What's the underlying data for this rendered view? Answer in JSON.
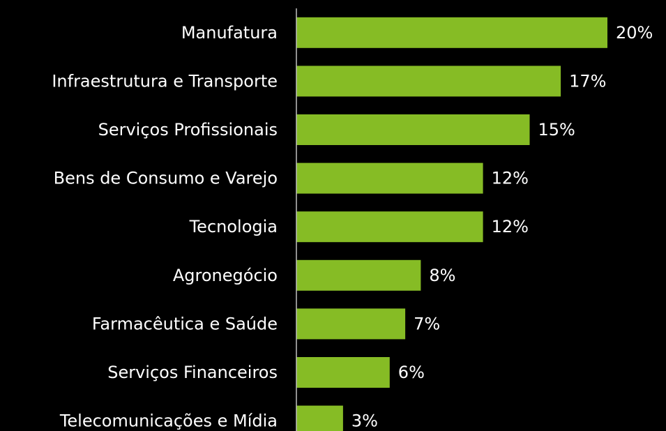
{
  "chart_data": {
    "type": "hbar",
    "categories": [
      "Manufatura",
      "Infraestrutura e Transporte",
      "Serviços Profissionais",
      "Bens de Consumo e Varejo",
      "Tecnologia",
      "Agronegócio",
      "Farmacêutica e Saúde",
      "Serviços Financeiros",
      "Telecomunicações e Mídia"
    ],
    "values": [
      20,
      17,
      15,
      12,
      12,
      8,
      7,
      6,
      3
    ],
    "value_labels": [
      "20%",
      "17%",
      "15%",
      "12%",
      "12%",
      "8%",
      "7%",
      "6%",
      "3%"
    ],
    "color": "#86bc25",
    "xlim": [
      0,
      20
    ]
  }
}
